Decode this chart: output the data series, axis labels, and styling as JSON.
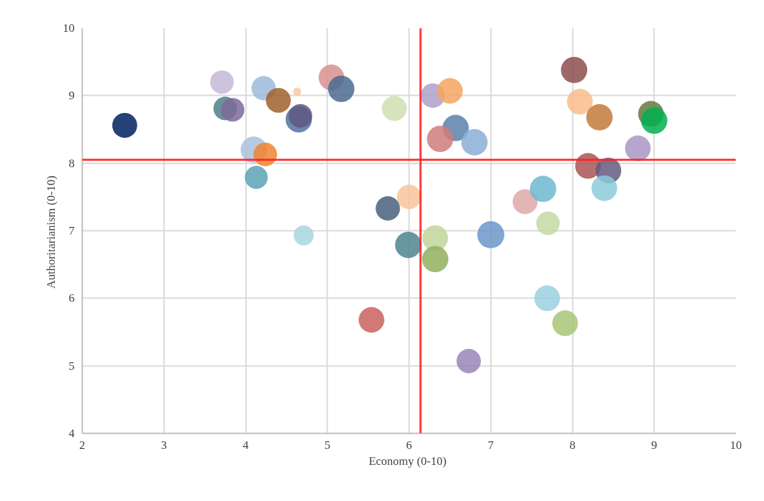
{
  "chart_data": {
    "type": "bubble",
    "xlabel": "Economy  (0-10)",
    "ylabel": "Authoritarianism  (0-10)",
    "xlim": [
      2,
      10
    ],
    "ylim": [
      4,
      10
    ],
    "xticks": [
      2,
      3,
      4,
      5,
      6,
      7,
      8,
      9,
      10
    ],
    "yticks": [
      4,
      5,
      6,
      7,
      8,
      9,
      10
    ],
    "grid": true,
    "marker": "circle",
    "x": [
      2.52,
      3.71,
      3.75,
      3.84,
      4.22,
      4.4,
      4.63,
      4.65,
      4.67,
      4.1,
      4.24,
      4.13,
      4.71,
      5.05,
      5.17,
      5.82,
      6.29,
      6.5,
      6.57,
      6.38,
      6.8,
      6.0,
      5.74,
      5.99,
      6.32,
      6.32,
      5.54,
      7.0,
      6.73,
      7.42,
      7.64,
      7.7,
      7.69,
      7.91,
      8.02,
      8.09,
      8.33,
      8.19,
      8.44,
      8.39,
      8.8,
      8.96,
      9.0
    ],
    "values": [
      8.56,
      9.2,
      8.81,
      8.79,
      9.11,
      8.93,
      9.06,
      8.65,
      8.7,
      8.2,
      8.13,
      7.79,
      6.93,
      9.27,
      9.1,
      8.81,
      9.0,
      9.07,
      8.52,
      8.36,
      8.31,
      7.5,
      7.33,
      6.79,
      6.89,
      6.58,
      5.68,
      6.94,
      5.07,
      7.43,
      7.62,
      7.11,
      6.0,
      5.63,
      9.38,
      8.91,
      8.68,
      7.96,
      7.89,
      7.63,
      8.22,
      8.73,
      8.63
    ],
    "sizes": [
      0.85,
      0.76,
      0.76,
      0.76,
      0.81,
      0.85,
      0.09,
      0.95,
      0.76,
      0.95,
      0.76,
      0.72,
      0.55,
      0.9,
      0.95,
      0.85,
      0.81,
      0.9,
      0.95,
      0.95,
      0.95,
      0.81,
      0.81,
      0.95,
      0.9,
      0.95,
      0.9,
      1,
      0.81,
      0.85,
      0.95,
      0.76,
      0.9,
      0.9,
      0.95,
      0.9,
      0.95,
      0.9,
      0.9,
      0.9,
      0.9,
      0.9,
      0.95
    ],
    "colors": [
      "#002060",
      "#c5b9d8",
      "#4f8088",
      "#7e6a99",
      "#9fbadb",
      "#a0622a",
      "#f9c9a0",
      "#52719f",
      "#5d5880",
      "#a9c1de",
      "#f0852f",
      "#5aa3b5",
      "#a8d6e3",
      "#d7908e",
      "#4a6a8f",
      "#cfdeb0",
      "#b09fca",
      "#f4a461",
      "#5a80ad",
      "#d07c7c",
      "#8aaed6",
      "#f8c49a",
      "#4a607f",
      "#4d8592",
      "#bfd69a",
      "#92b060",
      "#c9625f",
      "#6b96c9",
      "#9a85b8",
      "#dfa8a8",
      "#6db8d0",
      "#c6d9a5",
      "#9bd0e0",
      "#a9c677",
      "#8c4e4e",
      "#f8bd8a",
      "#c27a3a",
      "#a95555",
      "#635a7e",
      "#8ccad9",
      "#a996c4",
      "#66783e",
      "#00b050"
    ],
    "ref_lines": [
      {
        "axis": "x",
        "value": 6.14,
        "color": "#ff2020"
      },
      {
        "axis": "y",
        "value": 8.05,
        "color": "#ff2020"
      }
    ]
  }
}
